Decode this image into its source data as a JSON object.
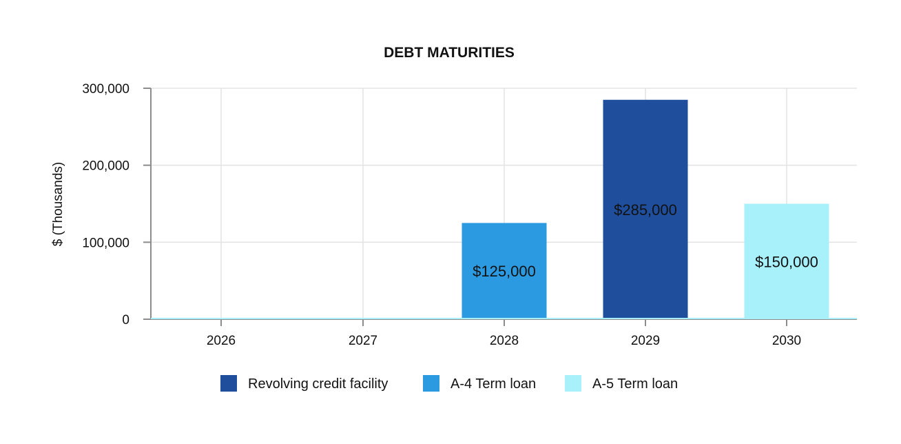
{
  "chart_data": {
    "type": "bar",
    "title": "DEBT MATURITIES",
    "ylabel": "$ (Thousands)",
    "xlabel": "",
    "categories": [
      "2026",
      "2027",
      "2028",
      "2029",
      "2030"
    ],
    "ylim": [
      0,
      300000
    ],
    "yticks": [
      0,
      100000,
      200000,
      300000
    ],
    "ytick_labels": [
      "0",
      "100,000",
      "200,000",
      "300,000"
    ],
    "grid": true,
    "legend_position": "bottom",
    "series": [
      {
        "name": "Revolving credit facility",
        "color": "#1f4e9c",
        "values": [
          0,
          0,
          0,
          285000,
          0
        ],
        "labels": [
          "",
          "",
          "",
          "$285,000",
          ""
        ]
      },
      {
        "name": "A-4 Term loan",
        "color": "#2b9ae0",
        "values": [
          0,
          0,
          125000,
          0,
          0
        ],
        "labels": [
          "",
          "",
          "$125,000",
          "",
          ""
        ]
      },
      {
        "name": "A-5 Term loan",
        "color": "#a8f0fa",
        "values": [
          0,
          0,
          0,
          0,
          150000
        ],
        "labels": [
          "",
          "",
          "",
          "",
          "$150,000"
        ]
      }
    ]
  }
}
